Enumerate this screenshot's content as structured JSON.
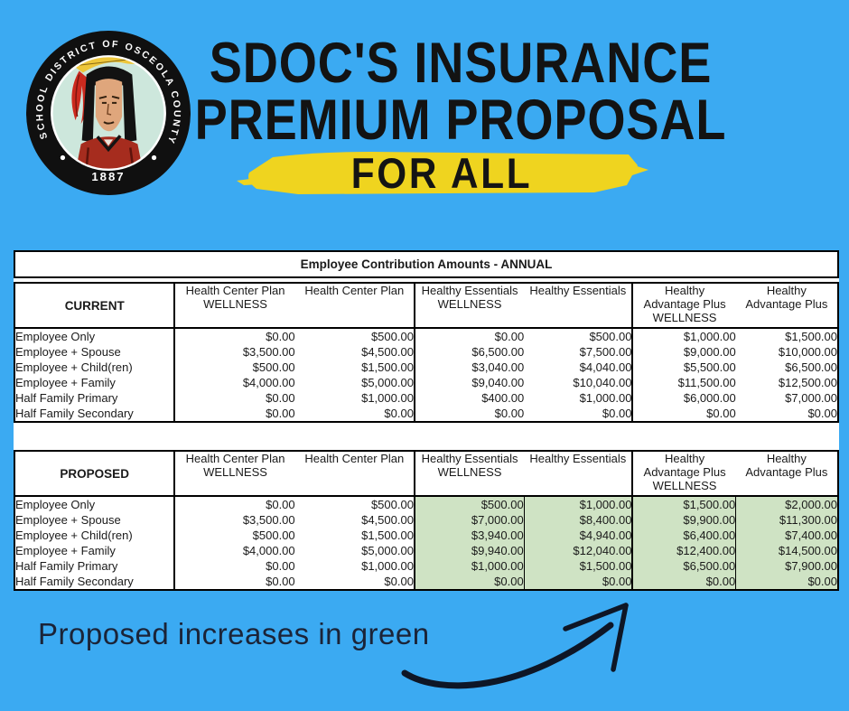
{
  "colors": {
    "background": "#3BAAF2",
    "highlight_yellow": "#EFD41F",
    "highlight_green": "#CFE3C4",
    "title_ink": "#131313",
    "footnote_ink": "#1B2438"
  },
  "logo": {
    "ring_text": "THE SCHOOL DISTRICT OF OSCEOLA COUNTY, FL",
    "year": "1887"
  },
  "title": {
    "line1": "SDOC'S INSURANCE",
    "line2": "PREMIUM PROPOSAL",
    "highlight_line": "FOR ALL"
  },
  "panel": {
    "banner": "Employee Contribution Amounts - ANNUAL",
    "column_headers": [
      [
        "Health Center Plan",
        "WELLNESS"
      ],
      [
        "Health Center Plan"
      ],
      [
        "Healthy Essentials",
        "WELLNESS"
      ],
      [
        "Healthy Essentials"
      ],
      [
        "Healthy",
        "Advantage Plus",
        "WELLNESS"
      ],
      [
        "Healthy",
        "Advantage Plus"
      ]
    ],
    "row_labels": [
      "Employee Only",
      "Employee + Spouse",
      "Employee + Child(ren)",
      "Employee + Family",
      "Half Family Primary",
      "Half Family Secondary"
    ],
    "current": {
      "label": "CURRENT",
      "rows": [
        [
          "$0.00",
          "$500.00",
          "$0.00",
          "$500.00",
          "$1,000.00",
          "$1,500.00"
        ],
        [
          "$3,500.00",
          "$4,500.00",
          "$6,500.00",
          "$7,500.00",
          "$9,000.00",
          "$10,000.00"
        ],
        [
          "$500.00",
          "$1,500.00",
          "$3,040.00",
          "$4,040.00",
          "$5,500.00",
          "$6,500.00"
        ],
        [
          "$4,000.00",
          "$5,000.00",
          "$9,040.00",
          "$10,040.00",
          "$11,500.00",
          "$12,500.00"
        ],
        [
          "$0.00",
          "$1,000.00",
          "$400.00",
          "$1,000.00",
          "$6,000.00",
          "$7,000.00"
        ],
        [
          "$0.00",
          "$0.00",
          "$0.00",
          "$0.00",
          "$0.00",
          "$0.00"
        ]
      ]
    },
    "proposed": {
      "label": "PROPOSED",
      "highlighted_columns": [
        2,
        3,
        4,
        5
      ],
      "rows": [
        [
          "$0.00",
          "$500.00",
          "$500.00",
          "$1,000.00",
          "$1,500.00",
          "$2,000.00"
        ],
        [
          "$3,500.00",
          "$4,500.00",
          "$7,000.00",
          "$8,400.00",
          "$9,900.00",
          "$11,300.00"
        ],
        [
          "$500.00",
          "$1,500.00",
          "$3,940.00",
          "$4,940.00",
          "$6,400.00",
          "$7,400.00"
        ],
        [
          "$4,000.00",
          "$5,000.00",
          "$9,940.00",
          "$12,040.00",
          "$12,400.00",
          "$14,500.00"
        ],
        [
          "$0.00",
          "$1,000.00",
          "$1,000.00",
          "$1,500.00",
          "$6,500.00",
          "$7,900.00"
        ],
        [
          "$0.00",
          "$0.00",
          "$0.00",
          "$0.00",
          "$0.00",
          "$0.00"
        ]
      ]
    }
  },
  "footnote": "Proposed increases in green"
}
